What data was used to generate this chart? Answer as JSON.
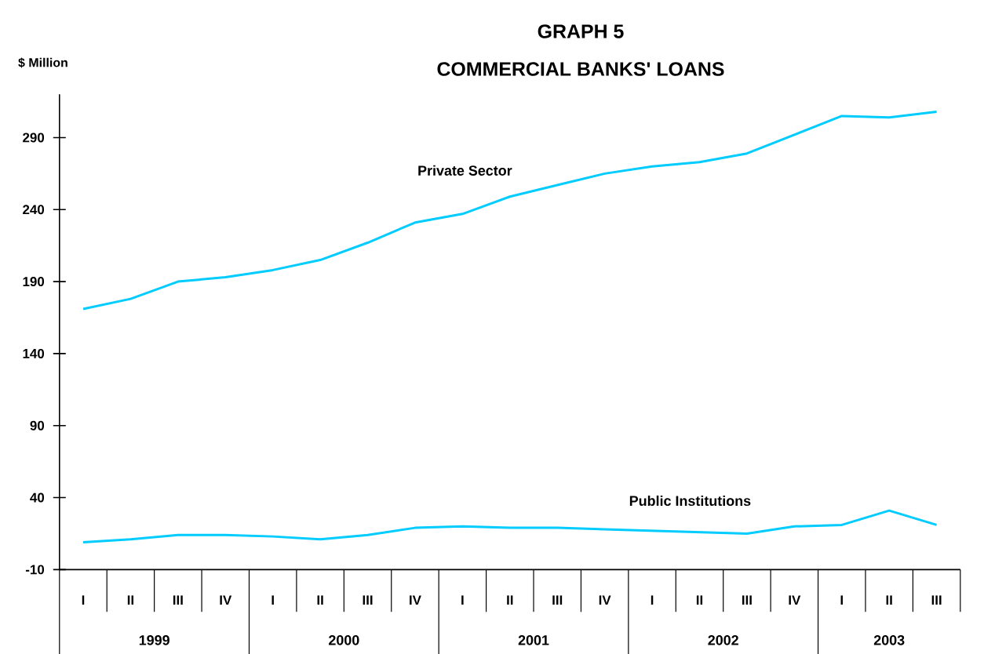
{
  "chart_data": {
    "type": "line",
    "title": "GRAPH 5",
    "subtitle": "COMMERCIAL BANKS' LOANS",
    "ylabel": "$ Million",
    "categories": [
      "I",
      "II",
      "III",
      "IV",
      "I",
      "II",
      "III",
      "IV",
      "I",
      "II",
      "III",
      "IV",
      "I",
      "II",
      "III",
      "IV",
      "I",
      "II",
      "III"
    ],
    "series": [
      {
        "name": "Private Sector",
        "color": "#00ccff",
        "values": [
          171,
          178,
          190,
          193,
          198,
          205,
          217,
          231,
          237,
          249,
          257,
          265,
          270,
          273,
          279,
          292,
          305,
          304,
          308
        ]
      },
      {
        "name": "Public Institutions",
        "color": "#00ccff",
        "values": [
          9,
          11,
          14,
          14,
          13,
          11,
          14,
          19,
          20,
          19,
          19,
          18,
          17,
          16,
          15,
          20,
          21,
          31,
          21
        ]
      }
    ],
    "ylim": [
      -10,
      320
    ],
    "yticks": [
      -10,
      40,
      90,
      140,
      190,
      240,
      290
    ],
    "annotations": [
      "1999",
      "2000",
      "2001",
      "2002",
      "2003"
    ],
    "grid": false,
    "marker": "none"
  }
}
